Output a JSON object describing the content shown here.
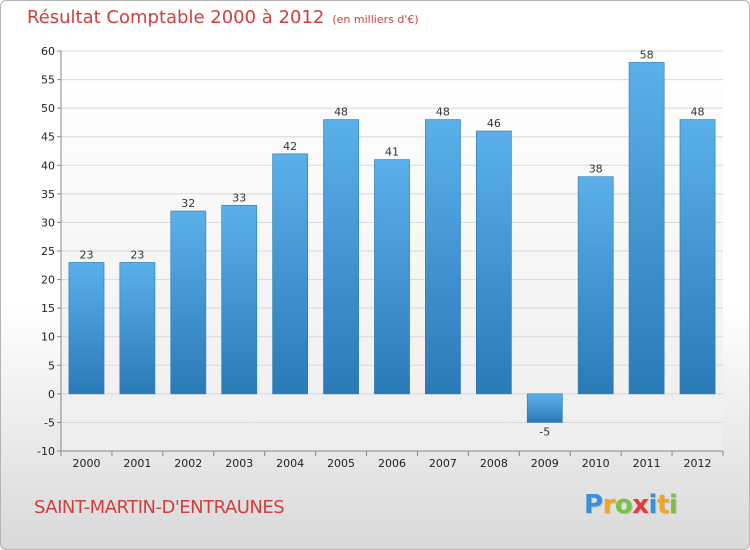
{
  "title": "Résultat Comptable 2000 à 2012",
  "subtitle": "(en milliers d'€)",
  "commune": "SAINT-MARTIN-D'ENTRAUNES",
  "brand": {
    "letters": [
      "P",
      "r",
      "o",
      "x",
      "i",
      "t",
      "i"
    ],
    "colors": [
      "#3b8fd6",
      "#f4a520",
      "#79c142",
      "#e23b3b",
      "#3b8fd6",
      "#f4a520",
      "#79c142"
    ]
  },
  "colors": {
    "bar_light": "#5bb0ea",
    "bar_dark": "#2a7ab8",
    "grid": "#d7d7d7",
    "text_red": "#d13e3e"
  },
  "chart_data": {
    "type": "bar",
    "title": "Résultat Comptable 2000 à 2012",
    "subtitle": "(en milliers d'€)",
    "categories": [
      "2000",
      "2001",
      "2002",
      "2003",
      "2004",
      "2005",
      "2006",
      "2007",
      "2008",
      "2009",
      "2010",
      "2011",
      "2012"
    ],
    "values": [
      23,
      23,
      32,
      33,
      42,
      48,
      41,
      48,
      46,
      -5,
      38,
      58,
      48
    ],
    "ylim": [
      -10,
      60
    ],
    "yticks": [
      -10,
      -5,
      0,
      5,
      10,
      15,
      20,
      25,
      30,
      35,
      40,
      45,
      50,
      55,
      60
    ],
    "grid": true,
    "xlabel": "",
    "ylabel": ""
  }
}
